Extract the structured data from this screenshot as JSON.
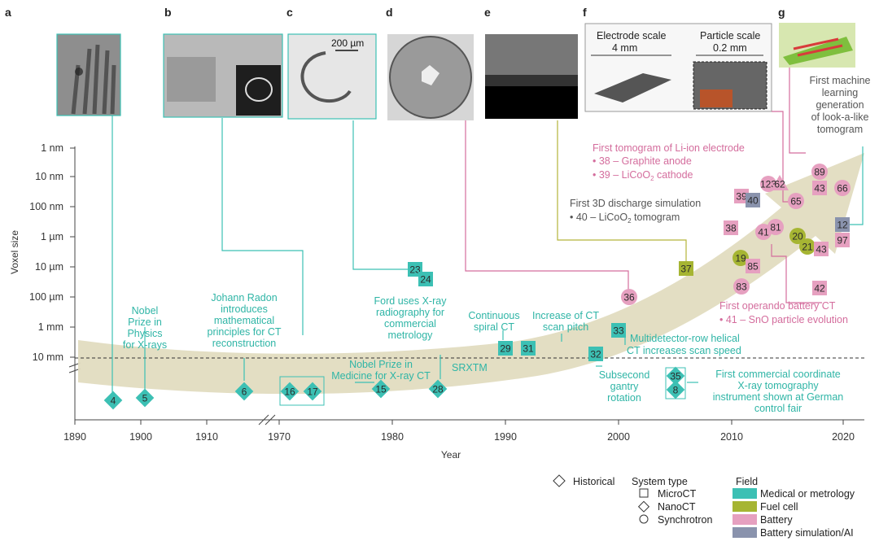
{
  "colors": {
    "medical": "#3cc0b4",
    "fuel": "#a6b533",
    "battery": "#e6a0c0",
    "battery_ai": "#8a93ad",
    "arrow": "#e1dcc0",
    "teal_text": "#2fb5a6",
    "pink_text": "#d46d9d",
    "olive_line": "#b5b43a"
  },
  "panels": {
    "a": "a",
    "b": "b",
    "c": "c",
    "d": "d",
    "e": "e",
    "f": "f",
    "g": "g",
    "c_scale": "200 µm",
    "f_electrode_scale": "Electrode scale",
    "f_electrode_size": "4 mm",
    "f_particle_scale": "Particle scale",
    "f_particle_size": "0.2 mm"
  },
  "axes": {
    "y_label": "Voxel size",
    "x_label": "Year",
    "y_ticks": [
      "1 nm",
      "10 nm",
      "100 nm",
      "1 µm",
      "10 µm",
      "100 µm",
      "1 mm",
      "10 mm"
    ],
    "x_ticks": [
      "1890",
      "1900",
      "1910",
      "1970",
      "1980",
      "1990",
      "2000",
      "2010",
      "2020"
    ]
  },
  "annotations": {
    "nobel_physics": [
      "Nobel",
      "Prize in",
      "Physics",
      "for X-rays"
    ],
    "radon": [
      "Johann Radon",
      "introduces",
      "mathematical",
      "principles for CT",
      "reconstruction"
    ],
    "ford": [
      "Ford uses X-ray",
      "radiography for",
      "commercial",
      "metrology"
    ],
    "nobel_medicine": [
      "Nobel Prize in",
      "Medicine for X-ray CT"
    ],
    "srxtm": "SRXTM",
    "spiral": [
      "Continuous",
      "spiral CT"
    ],
    "pitch": [
      "Increase of CT",
      "scan pitch"
    ],
    "multidetector": [
      "Multidetector-row helical",
      "CT increases scan speed"
    ],
    "subsecond": [
      "Subsecond",
      "gantry",
      "rotation"
    ],
    "coordinate": [
      "First commercial coordinate",
      "X-ray tomography",
      "instrument shown at German",
      "control fair"
    ],
    "li_ion_title": "First tomogram of Li-ion electrode",
    "li_ion_38": "• 38 – Graphite anode",
    "li_ion_39": "• 39 – LiCoO",
    "li_ion_39b": " cathode",
    "sim_title": "First 3D discharge simulation",
    "sim_40": "• 40 –  LiCoO",
    "sim_40b": " tomogram",
    "operando_title": "First operando battery CT",
    "operando_41": "• 41 – SnO particle evolution",
    "ml": [
      "First machine",
      "learning",
      "generation",
      "of look-a-like",
      "tomogram"
    ],
    "sub2": "2"
  },
  "markers": [
    {
      "label": "4",
      "shape": "diamond",
      "field": "medical"
    },
    {
      "label": "5",
      "shape": "diamond",
      "field": "medical"
    },
    {
      "label": "6",
      "shape": "diamond",
      "field": "medical"
    },
    {
      "label": "16",
      "shape": "diamond",
      "field": "medical"
    },
    {
      "label": "17",
      "shape": "diamond",
      "field": "medical"
    },
    {
      "label": "15",
      "shape": "diamond",
      "field": "medical"
    },
    {
      "label": "28",
      "shape": "diamond",
      "field": "medical"
    },
    {
      "label": "23",
      "shape": "square",
      "field": "medical"
    },
    {
      "label": "24",
      "shape": "square",
      "field": "medical"
    },
    {
      "label": "29",
      "shape": "square",
      "field": "medical"
    },
    {
      "label": "31",
      "shape": "square",
      "field": "medical"
    },
    {
      "label": "33",
      "shape": "square",
      "field": "medical"
    },
    {
      "label": "32",
      "shape": "square",
      "field": "medical"
    },
    {
      "label": "35",
      "shape": "diamond",
      "field": "medical"
    },
    {
      "label": "8",
      "shape": "diamond",
      "field": "medical"
    },
    {
      "label": "36",
      "shape": "circle",
      "field": "battery"
    },
    {
      "label": "37",
      "shape": "square",
      "field": "fuel"
    },
    {
      "label": "38",
      "shape": "square",
      "field": "battery"
    },
    {
      "label": "39",
      "shape": "square",
      "field": "battery"
    },
    {
      "label": "40",
      "shape": "square",
      "field": "battery_ai"
    },
    {
      "label": "123",
      "shape": "circle",
      "field": "battery"
    },
    {
      "label": "62",
      "shape": "triangle",
      "field": "battery"
    },
    {
      "label": "65",
      "shape": "circle",
      "field": "battery"
    },
    {
      "label": "89",
      "shape": "circle",
      "field": "battery"
    },
    {
      "label": "43",
      "shape": "square",
      "field": "battery"
    },
    {
      "label": "66",
      "shape": "circle",
      "field": "battery"
    },
    {
      "label": "41",
      "shape": "circle",
      "field": "battery"
    },
    {
      "label": "81",
      "shape": "circle",
      "field": "battery"
    },
    {
      "label": "20",
      "shape": "circle",
      "field": "fuel"
    },
    {
      "label": "21",
      "shape": "circle",
      "field": "fuel"
    },
    {
      "label": "43",
      "shape": "square",
      "field": "battery"
    },
    {
      "label": "19",
      "shape": "circle",
      "field": "fuel"
    },
    {
      "label": "85",
      "shape": "square",
      "field": "battery"
    },
    {
      "label": "83",
      "shape": "circle",
      "field": "battery"
    },
    {
      "label": "42",
      "shape": "square",
      "field": "battery"
    },
    {
      "label": "12",
      "shape": "square",
      "field": "battery_ai"
    },
    {
      "label": "97",
      "shape": "square",
      "field": "battery"
    }
  ],
  "legend": {
    "historical": "Historical",
    "system_type": "System type",
    "microct": "MicroCT",
    "nanoct": "NanoCT",
    "synchrotron": "Synchrotron",
    "field": "Field",
    "f_medical": "Medical or metrology",
    "f_fuel": "Fuel cell",
    "f_battery": "Battery",
    "f_ai": "Battery simulation/AI"
  }
}
